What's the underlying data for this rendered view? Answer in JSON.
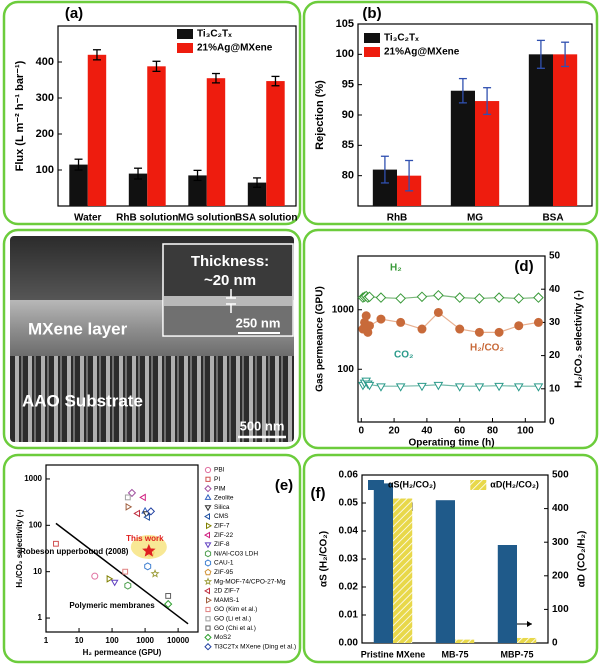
{
  "chart_data": [
    {
      "type": "bar",
      "panel_label": "(a)",
      "ylabel": "Flux (L m⁻² h⁻¹ bar⁻¹)",
      "categories": [
        "Water",
        "RhB solution",
        "MG solution",
        "BSA solution"
      ],
      "series": [
        {
          "name": "Ti₃C₂Tₓ",
          "color": "#111111",
          "values": [
            115,
            90,
            85,
            65
          ],
          "errors": [
            15,
            15,
            14,
            13
          ]
        },
        {
          "name": "21%Ag@MXene",
          "color": "#ee1c0e",
          "values": [
            420,
            388,
            355,
            347
          ],
          "errors": [
            14,
            14,
            13,
            13
          ]
        }
      ],
      "ylim": [
        0,
        500
      ],
      "yticks": [
        100,
        200,
        300,
        400
      ],
      "legend": "upper right",
      "error_color": "#000000"
    },
    {
      "type": "bar",
      "panel_label": "(b)",
      "ylabel": "Rejection (%)",
      "categories": [
        "RhB",
        "MG",
        "BSA"
      ],
      "series": [
        {
          "name": "Ti₃C₂Tₓ",
          "color": "#111111",
          "values": [
            81,
            94,
            100
          ],
          "errors": [
            2.2,
            2,
            2.3
          ]
        },
        {
          "name": "21%Ag@MXene",
          "color": "#ee1c0e",
          "values": [
            80,
            92.3,
            100
          ],
          "errors": [
            2.5,
            2.2,
            2
          ]
        }
      ],
      "ylim": [
        75,
        105
      ],
      "yticks": [
        80,
        85,
        90,
        95,
        100,
        105
      ],
      "legend": "upper left",
      "error_color": "#3050b0"
    },
    {
      "type": "line",
      "panel_label": "(d)",
      "xlabel": "Operating time (h)",
      "ylabel": "Gas permeance (GPU)",
      "y2label": "H₂/CO₂ selectivity (-)",
      "xlim": [
        -2,
        112
      ],
      "xticks": [
        0,
        20,
        40,
        60,
        80,
        100
      ],
      "ylog": true,
      "ylim": [
        13,
        8000
      ],
      "yticks": [
        100,
        1000
      ],
      "y2lim": [
        0,
        50
      ],
      "y2ticks": [
        0,
        10,
        20,
        30,
        40,
        50
      ],
      "series": [
        {
          "name": "H₂",
          "color": "#3a9a3a",
          "line_color": "#7ab87a",
          "marker": "diamond",
          "filled": false,
          "x": [
            1,
            2,
            3,
            4,
            5,
            12,
            24,
            37,
            47,
            60,
            72,
            84,
            96,
            108
          ],
          "values": [
            1600,
            1650,
            1700,
            1600,
            1650,
            1600,
            1550,
            1650,
            1750,
            1600,
            1550,
            1600,
            1550,
            1600
          ]
        },
        {
          "name": "CO₂",
          "color": "#2a9a8a",
          "line_color": "#70b8a8",
          "marker": "triangle-down",
          "filled": false,
          "x": [
            1,
            2,
            3,
            4,
            5,
            12,
            24,
            37,
            47,
            60,
            72,
            84,
            96,
            108
          ],
          "values": [
            55,
            60,
            65,
            58,
            55,
            52,
            52,
            53,
            55,
            52,
            52,
            53,
            52,
            52
          ]
        },
        {
          "name": "H₂/CO₂",
          "color": "#c86a3a",
          "line_color": "#e8b090",
          "marker": "circle",
          "filled": true,
          "axis": "y2",
          "x": [
            1,
            2,
            3,
            4,
            5,
            12,
            24,
            37,
            47,
            60,
            72,
            84,
            96,
            108
          ],
          "values": [
            28,
            30,
            32,
            27,
            29,
            31,
            30,
            28,
            33,
            28,
            27,
            27,
            29,
            30
          ]
        }
      ]
    },
    {
      "type": "scatter",
      "panel_label": "(e)",
      "xlabel": "H₂ permeance (GPU)",
      "ylabel": "H₂/CO₂ selectivity (-)",
      "xlog": true,
      "ylog": true,
      "xlim": [
        1,
        40000
      ],
      "ylim": [
        0.5,
        2000
      ],
      "xticks": [
        1,
        10,
        100,
        1000,
        10000
      ],
      "yticks": [
        1,
        10,
        100,
        1000
      ],
      "series": [
        {
          "name": "PBI",
          "color": "#e070a0",
          "marker": "circle",
          "x": [
            30
          ],
          "values": [
            8
          ]
        },
        {
          "name": "PI",
          "color": "#d05050",
          "marker": "square",
          "x": [
            2
          ],
          "values": [
            40
          ]
        },
        {
          "name": "PIM",
          "color": "#a050a0",
          "marker": "diamond",
          "x": [
            400
          ],
          "values": [
            500
          ]
        },
        {
          "name": "Zeolite",
          "color": "#3060c0",
          "marker": "triangle-up",
          "x": [
            1000
          ],
          "values": [
            200
          ]
        },
        {
          "name": "Silica",
          "color": "#303030",
          "marker": "triangle-down",
          "x": [
            1100
          ],
          "values": [
            180
          ]
        },
        {
          "name": "CMS",
          "color": "#2050a0",
          "marker": "triangle-left",
          "x": [
            1200
          ],
          "values": [
            150
          ]
        },
        {
          "name": "ZIF-7",
          "color": "#808000",
          "marker": "triangle-right",
          "x": [
            80
          ],
          "values": [
            7
          ]
        },
        {
          "name": "ZIF-22",
          "color": "#d02080",
          "marker": "triangle-left",
          "x": [
            900
          ],
          "values": [
            400
          ]
        },
        {
          "name": "ZIF-8",
          "color": "#6040c0",
          "marker": "triangle-down",
          "x": [
            120
          ],
          "values": [
            6
          ]
        },
        {
          "name": "Ni/Al-CO3 LDH",
          "color": "#50a050",
          "marker": "hexagon",
          "x": [
            300
          ],
          "values": [
            5
          ]
        },
        {
          "name": "CAU-1",
          "color": "#4080d0",
          "marker": "hexagon",
          "x": [
            1200
          ],
          "values": [
            13
          ]
        },
        {
          "name": "ZIF-95",
          "color": "#d09030",
          "marker": "pentagon",
          "x": [
            1500
          ],
          "values": [
            25
          ]
        },
        {
          "name": "Mg-MOF-74/CPO-27-Mg",
          "color": "#a0a040",
          "marker": "star",
          "x": [
            2000
          ],
          "values": [
            9
          ]
        },
        {
          "name": "2D ZIF-7",
          "color": "#c03040",
          "marker": "triangle-left",
          "x": [
            600
          ],
          "values": [
            180
          ]
        },
        {
          "name": "MAMS-1",
          "color": "#a06040",
          "marker": "triangle-right",
          "x": [
            300
          ],
          "values": [
            250
          ]
        },
        {
          "name": "GO (Kim et al.)",
          "color": "#e08080",
          "marker": "square",
          "x": [
            250
          ],
          "values": [
            10
          ]
        },
        {
          "name": "GO (Li et al.)",
          "color": "#a0a0a0",
          "marker": "square",
          "x": [
            300
          ],
          "values": [
            400
          ]
        },
        {
          "name": "GO (Chi et al.)",
          "color": "#606060",
          "marker": "square",
          "x": [
            5000
          ],
          "values": [
            3
          ]
        },
        {
          "name": "MoS2",
          "color": "#30a030",
          "marker": "diamond",
          "x": [
            5000
          ],
          "values": [
            2
          ]
        },
        {
          "name": "Ti3C2Tx MXene (Ding et al.)",
          "color": "#2040a0",
          "marker": "diamond",
          "x": [
            1500
          ],
          "values": [
            200
          ]
        }
      ],
      "highlight": {
        "name": "This work",
        "color": "#e02020",
        "x": [
          1300
        ],
        "values": [
          28
        ]
      },
      "upperbound": {
        "name": "Robeson upperbound (2008)",
        "x": [
          2,
          20000
        ],
        "values": [
          110,
          0.75
        ]
      },
      "annotation": "Polymeric membranes"
    },
    {
      "type": "bar",
      "panel_label": "(f)",
      "ylabel": "αS (H₂/CO₂)",
      "y2label": "αD (CO₂/H₂)",
      "categories": [
        "Pristine MXene",
        "MB-75",
        "MBP-75"
      ],
      "series": [
        {
          "name": "αS(H₂/CO₂)",
          "color": "#1f5a8a",
          "values": [
            0.057,
            0.051,
            0.035
          ]
        },
        {
          "name": "αD(H₂/CO₂)",
          "color": "#e8d84a",
          "hatch": true,
          "axis": "y2",
          "values": [
            430,
            10,
            15
          ]
        }
      ],
      "ylim": [
        0,
        0.06
      ],
      "yticks": [
        {
          "value": 0,
          "label": "0.00"
        },
        {
          "value": 0.01,
          "label": "0.01"
        },
        {
          "value": 0.02,
          "label": "0.02"
        },
        {
          "value": 0.03,
          "label": "0.03"
        },
        {
          "value": 0.04,
          "label": "0.04"
        },
        {
          "value": 0.05,
          "label": "0.05"
        },
        {
          "value": 0.06,
          "label": "0.06"
        }
      ],
      "y2lim": [
        0,
        500
      ],
      "y2ticks": [
        0,
        100,
        200,
        300,
        400,
        500
      ],
      "legend": "split"
    }
  ],
  "sem_image": {
    "inset_title": "Thickness:",
    "inset_value": "~20 nm",
    "scale_inset": "250 nm",
    "layer": "MXene layer",
    "substrate": "AAO Substrate",
    "scale_main": "500 nm"
  }
}
